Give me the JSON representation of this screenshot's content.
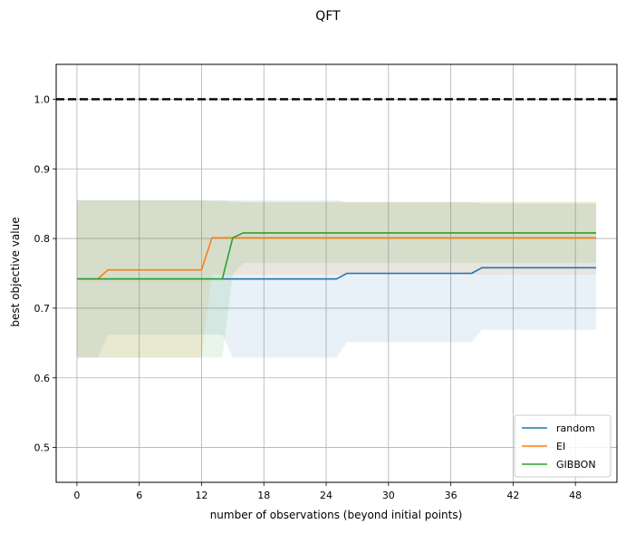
{
  "chart_data": {
    "type": "line",
    "title": "QFT",
    "xlabel": "number of observations (beyond initial points)",
    "ylabel": "best objective value",
    "xlim": [
      -2,
      52
    ],
    "ylim": [
      0.45,
      1.05
    ],
    "xticks": [
      0,
      6,
      12,
      18,
      24,
      30,
      36,
      42,
      48
    ],
    "yticks": [
      0.5,
      0.6,
      0.7,
      0.8,
      0.9,
      1.0
    ],
    "xtick_labels": [
      "0",
      "6",
      "12",
      "18",
      "24",
      "30",
      "36",
      "42",
      "48"
    ],
    "ytick_labels": [
      "0.5",
      "0.6",
      "0.7",
      "0.8",
      "0.9",
      "1.0"
    ],
    "grid": true,
    "legend_position": "lower-right",
    "reference_line": {
      "y": 1.0,
      "style": "dashed",
      "color": "#000000"
    },
    "series": [
      {
        "name": "random",
        "color": "#1f77b4",
        "x": [
          0,
          25,
          26,
          38,
          39,
          50
        ],
        "y": [
          0.742,
          0.742,
          0.75,
          0.75,
          0.758,
          0.758
        ],
        "band_x": [
          0,
          2,
          3,
          14,
          15,
          25,
          26,
          38,
          39,
          50
        ],
        "band_lower": [
          0.629,
          0.629,
          0.662,
          0.662,
          0.629,
          0.629,
          0.651,
          0.651,
          0.669,
          0.669
        ],
        "band_upper": [
          0.855,
          0.855,
          0.855,
          0.855,
          0.855,
          0.855,
          0.852,
          0.852,
          0.85,
          0.85
        ]
      },
      {
        "name": "EI",
        "color": "#ff7f0e",
        "x": [
          0,
          2,
          3,
          12,
          13,
          50
        ],
        "y": [
          0.742,
          0.742,
          0.755,
          0.755,
          0.801,
          0.801
        ],
        "band_x": [
          0,
          12,
          13,
          50
        ],
        "band_lower": [
          0.629,
          0.629,
          0.748,
          0.748
        ],
        "band_upper": [
          0.855,
          0.855,
          0.853,
          0.853
        ]
      },
      {
        "name": "GIBBON",
        "color": "#2ca02c",
        "x": [
          0,
          14,
          15,
          16,
          50
        ],
        "y": [
          0.742,
          0.742,
          0.801,
          0.808,
          0.808
        ],
        "band_x": [
          0,
          2,
          3,
          12,
          13,
          14,
          15,
          16,
          50
        ],
        "band_lower": [
          0.629,
          0.629,
          0.629,
          0.629,
          0.629,
          0.629,
          0.748,
          0.765,
          0.765
        ],
        "band_upper": [
          0.855,
          0.855,
          0.855,
          0.855,
          0.855,
          0.855,
          0.853,
          0.852,
          0.852
        ]
      }
    ]
  }
}
